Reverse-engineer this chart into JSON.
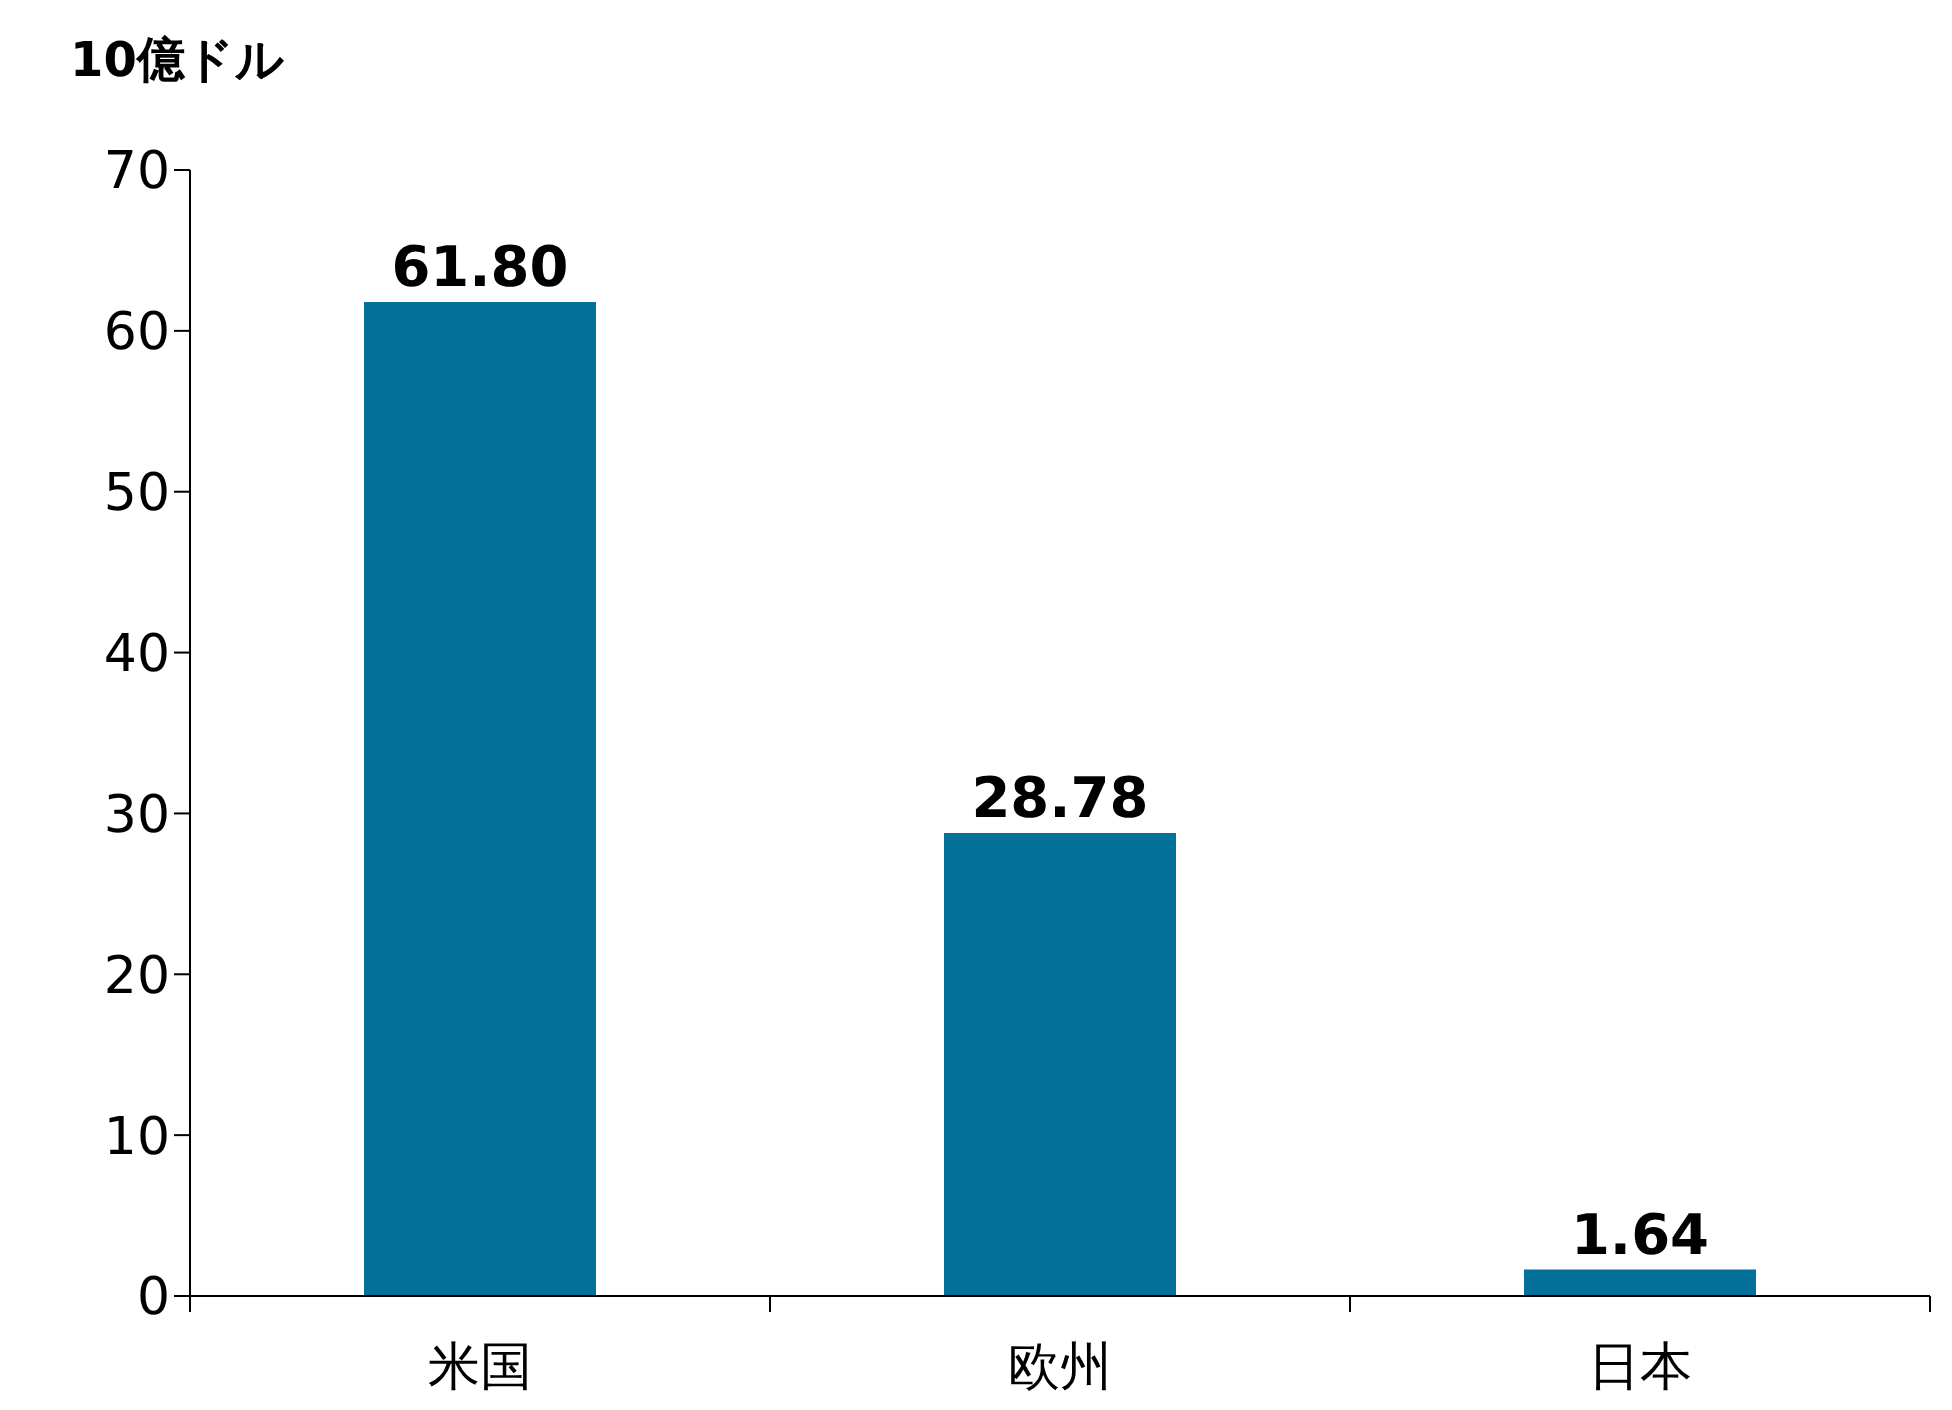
{
  "chart_data": {
    "type": "bar",
    "ylabel": "10億ドル",
    "categories": [
      "米国",
      "欧州",
      "日本"
    ],
    "values": [
      61.8,
      28.78,
      1.64
    ],
    "value_labels": [
      "61.80",
      "28.78",
      "1.64"
    ],
    "color": "#03719a",
    "ylim": [
      0,
      70
    ],
    "yticks": [
      0,
      10,
      20,
      30,
      40,
      50,
      60,
      70
    ],
    "grid": false,
    "legend": false
  }
}
